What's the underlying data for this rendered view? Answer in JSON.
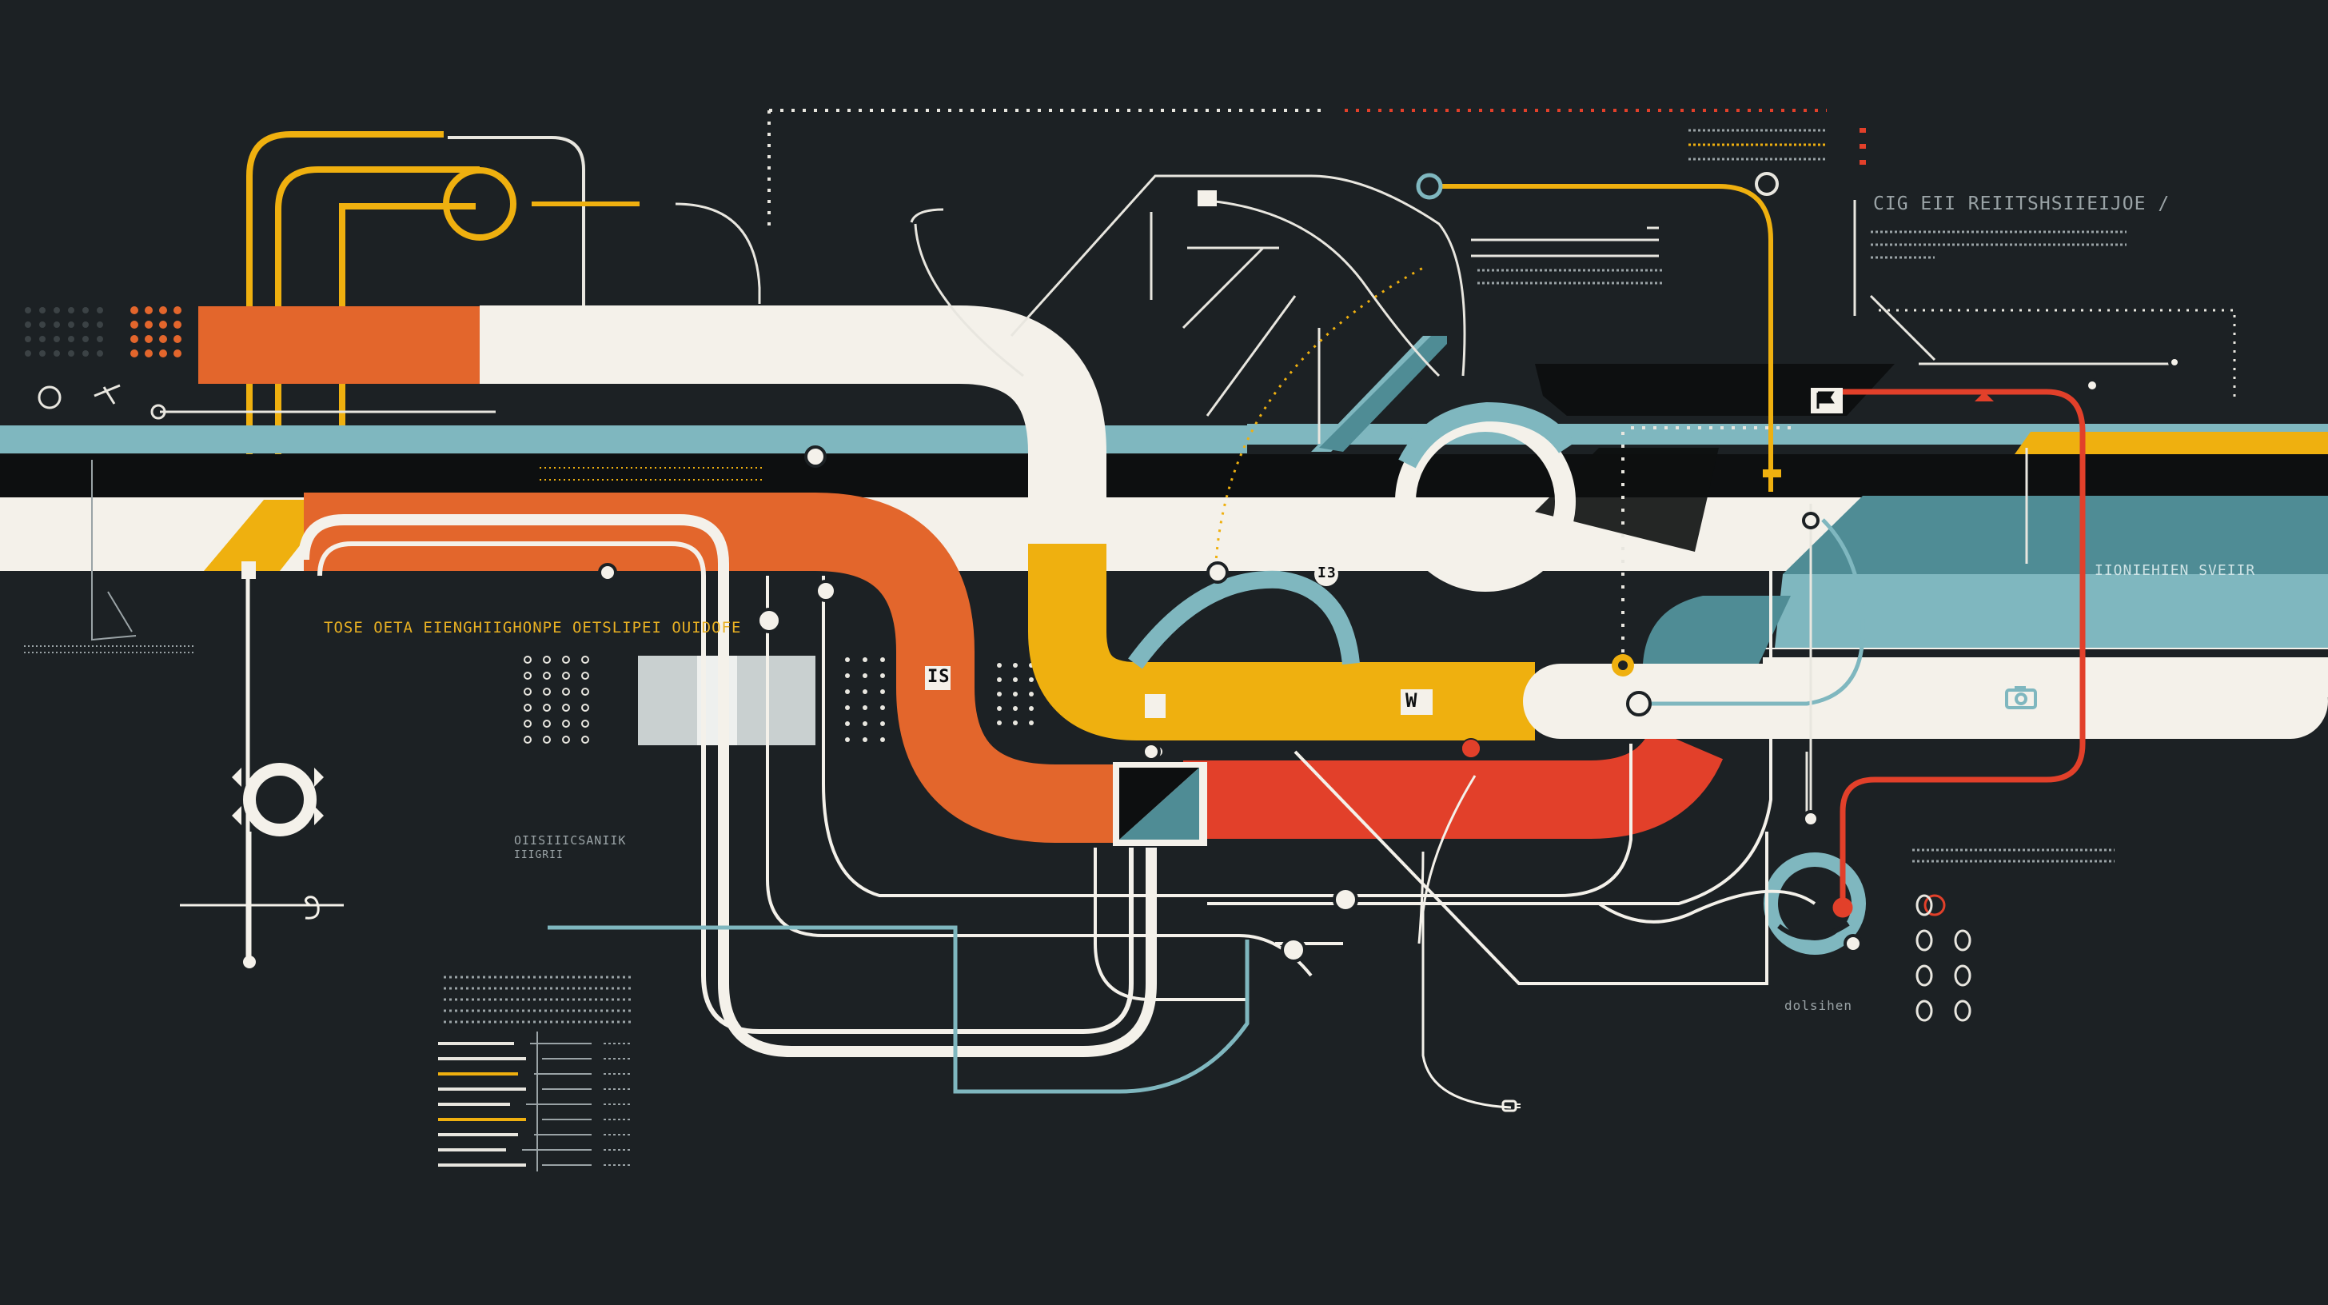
{
  "palette": {
    "background": "#1c2124",
    "orange": "#e3662c",
    "red": "#e2402a",
    "yellow": "#efb00f",
    "cream": "#f4f1ea",
    "teal": "#7fb7bf",
    "dark_teal": "#4f8c95",
    "black": "#0d0f10",
    "grey_text": "#9aa3a6"
  },
  "labels": {
    "left_heading": "TOSE OETA EIENGHIIGHONPE OETSLIPEI OUIDOFE",
    "right_heading": "CIG EII REIITSHSIIEIJOE /",
    "right_band_label": "IIONIEHIEN SVEIIR",
    "left_small_box": "OIISIIICSANIIK",
    "left_small_box_sub": "IIIGRII",
    "bottom_right_caption": "dolsihen",
    "node_a": "IS",
    "node_b": "W",
    "node_c": "I3"
  },
  "icons": [
    "camera-icon",
    "flag-icon",
    "target-ring-icon",
    "spiral-glyph-icon",
    "warning-triangle-icon",
    "plug-icon"
  ]
}
